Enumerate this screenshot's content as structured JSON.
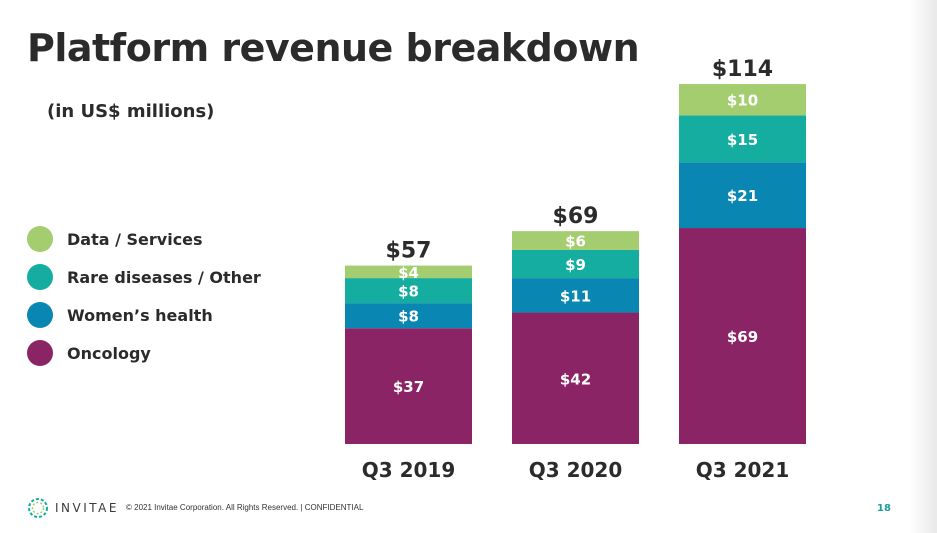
{
  "slide": {
    "title": "Platform revenue breakdown",
    "subtitle": "(in US$ millions)",
    "footer_brand": "INVITAE",
    "footer_text": "© 2021 Invitae Corporation. All Rights Reserved.  |  CONFIDENTIAL",
    "page_number": "18"
  },
  "chart_data": {
    "type": "bar",
    "stacked": true,
    "categories": [
      "Q3 2019",
      "Q3 2020",
      "Q3 2021"
    ],
    "totals": [
      57,
      69,
      114
    ],
    "total_labels": [
      "$57",
      "$69",
      "$114"
    ],
    "series": [
      {
        "name": "Oncology",
        "values": [
          37,
          42,
          69
        ],
        "labels": [
          "$37",
          "$42",
          "$69"
        ],
        "color": "#8b2465"
      },
      {
        "name": "Women’s health",
        "values": [
          8,
          11,
          21
        ],
        "labels": [
          "$8",
          "$11",
          "$21"
        ],
        "color": "#0a86b3"
      },
      {
        "name": "Rare diseases / Other",
        "values": [
          8,
          9,
          15
        ],
        "labels": [
          "$8",
          "$9",
          "$15"
        ],
        "color": "#14ada0"
      },
      {
        "name": "Data / Services",
        "values": [
          4,
          6,
          10
        ],
        "labels": [
          "$4",
          "$6",
          "$10"
        ],
        "color": "#a3cd6e"
      }
    ],
    "legend_order": [
      "Data / Services",
      "Rare diseases / Other",
      "Women’s health",
      "Oncology"
    ],
    "legend_colors": [
      "#a3cd6e",
      "#14ada0",
      "#0a86b3",
      "#8b2465"
    ],
    "legend_position": "left",
    "grid": false
  }
}
